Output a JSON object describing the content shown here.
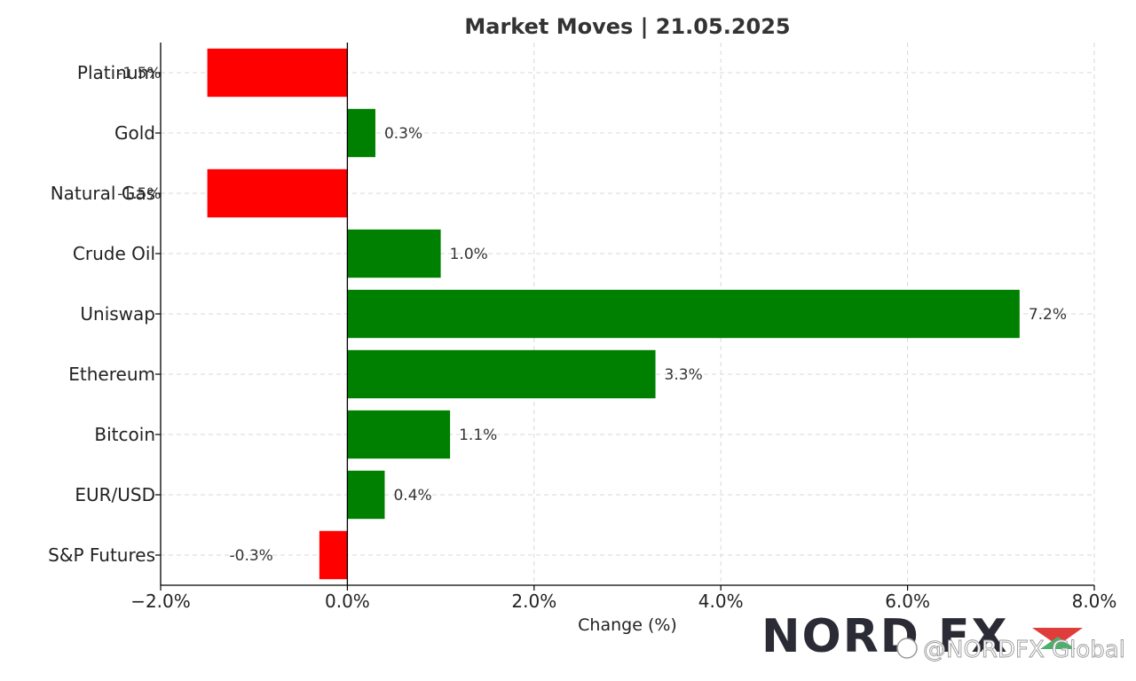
{
  "chart_data": {
    "type": "bar",
    "orientation": "horizontal",
    "title": "Market Moves | 21.05.2025",
    "xlabel": "Change (%)",
    "ylabel": "",
    "categories": [
      "Platinum",
      "Gold",
      "Natural Gas",
      "Crude Oil",
      "Uniswap",
      "Ethereum",
      "Bitcoin",
      "EUR/USD",
      "S&P Futures"
    ],
    "values": [
      -1.5,
      0.3,
      -1.5,
      1.0,
      7.2,
      3.3,
      1.1,
      0.4,
      -0.3
    ],
    "value_labels": [
      "-1.5%",
      "0.3%",
      "-1.5%",
      "1.0%",
      "7.2%",
      "3.3%",
      "1.1%",
      "0.4%",
      "-0.3%"
    ],
    "xlim": [
      -2.0,
      8.0
    ],
    "xticks": [
      -2.0,
      0.0,
      2.0,
      4.0,
      6.0,
      8.0
    ],
    "xtick_labels": [
      "−2.0%",
      "0.0%",
      "2.0%",
      "4.0%",
      "6.0%",
      "8.0%"
    ],
    "grid": true,
    "colors": {
      "positive": "#008000",
      "negative": "#ff0000"
    }
  },
  "watermark": {
    "logo_text": "NORD FX",
    "handle": "@NORDFX Global"
  }
}
